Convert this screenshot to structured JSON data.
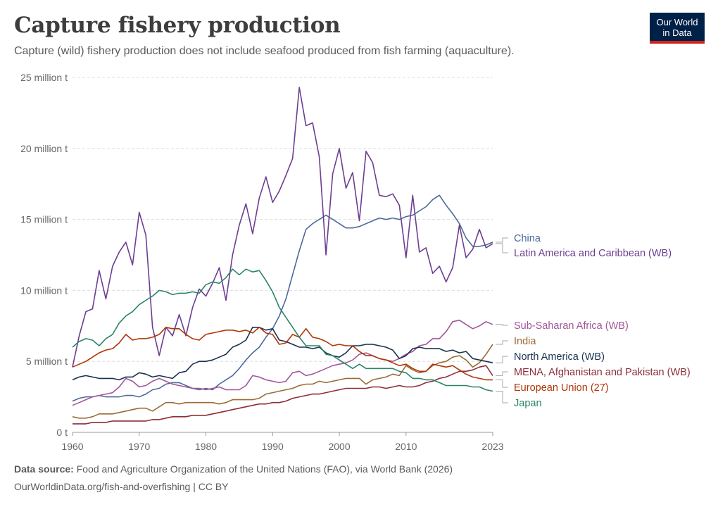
{
  "header": {
    "title": "Capture fishery production",
    "subtitle": "Capture (wild) fishery production does not include seafood produced from fish farming (aquaculture).",
    "logo_line1": "Our World",
    "logo_line2": "in Data"
  },
  "footer": {
    "source_label": "Data source:",
    "source_text": "Food and Agriculture Organization of the United Nations (FAO), via World Bank (2026)",
    "url": "OurWorldinData.org/fish-and-overfishing | CC BY"
  },
  "chart_data": {
    "type": "line",
    "title": "Capture fishery production",
    "xlabel": "",
    "ylabel": "",
    "xlim": [
      1960,
      2023
    ],
    "ylim": [
      0,
      25000000
    ],
    "grid": "horizontal dashed",
    "legend_placement": "right, inline labels at line ends",
    "x_ticks": [
      {
        "value": 1960,
        "label": "1960"
      },
      {
        "value": 1970,
        "label": "1970"
      },
      {
        "value": 1980,
        "label": "1980"
      },
      {
        "value": 1990,
        "label": "1990"
      },
      {
        "value": 2000,
        "label": "2000"
      },
      {
        "value": 2010,
        "label": "2010"
      },
      {
        "value": 2023,
        "label": "2023"
      }
    ],
    "y_ticks": [
      {
        "value": 0,
        "label": "0 t"
      },
      {
        "value": 5000000,
        "label": "5 million t"
      },
      {
        "value": 10000000,
        "label": "10 million t"
      },
      {
        "value": 15000000,
        "label": "15 million t"
      },
      {
        "value": 20000000,
        "label": "20 million t"
      },
      {
        "value": 25000000,
        "label": "25 million t"
      }
    ],
    "x": [
      1960,
      1961,
      1962,
      1963,
      1964,
      1965,
      1966,
      1967,
      1968,
      1969,
      1970,
      1971,
      1972,
      1973,
      1974,
      1975,
      1976,
      1977,
      1978,
      1979,
      1980,
      1981,
      1982,
      1983,
      1984,
      1985,
      1986,
      1987,
      1988,
      1989,
      1990,
      1991,
      1992,
      1993,
      1994,
      1995,
      1996,
      1997,
      1998,
      1999,
      2000,
      2001,
      2002,
      2003,
      2004,
      2005,
      2006,
      2007,
      2008,
      2009,
      2010,
      2011,
      2012,
      2013,
      2014,
      2015,
      2016,
      2017,
      2018,
      2019,
      2020,
      2021,
      2022,
      2023
    ],
    "series": [
      {
        "name": "China",
        "color": "#4c6a9c",
        "values": [
          2200000,
          2400000,
          2500000,
          2500000,
          2600000,
          2500000,
          2500000,
          2500000,
          2600000,
          2600000,
          2500000,
          2700000,
          3000000,
          3100000,
          3400000,
          3500000,
          3500000,
          3300000,
          3100000,
          3000000,
          3100000,
          3000000,
          3400000,
          3700000,
          4000000,
          4500000,
          5100000,
          5600000,
          6000000,
          6700000,
          7300000,
          8200000,
          9400000,
          11100000,
          12800000,
          14300000,
          14700000,
          15000000,
          15300000,
          15000000,
          14700000,
          14400000,
          14400000,
          14500000,
          14700000,
          14900000,
          15100000,
          15000000,
          15100000,
          15000000,
          15200000,
          15300000,
          15600000,
          15900000,
          16400000,
          16700000,
          16000000,
          15400000,
          14700000,
          13700000,
          13100000,
          13100000,
          13200000,
          13400000
        ]
      },
      {
        "name": "Latin America and Caribbean (WB)",
        "color": "#6d3e91",
        "values": [
          4600000,
          6800000,
          8500000,
          8700000,
          11400000,
          9400000,
          11700000,
          12700000,
          13400000,
          11800000,
          15500000,
          13900000,
          7400000,
          5400000,
          7400000,
          6800000,
          8300000,
          6800000,
          8800000,
          10100000,
          9600000,
          10500000,
          11600000,
          9300000,
          12500000,
          14600000,
          16100000,
          14000000,
          16500000,
          18000000,
          16200000,
          17000000,
          18100000,
          19300000,
          24300000,
          21600000,
          21800000,
          19400000,
          12500000,
          18200000,
          20000000,
          17200000,
          18300000,
          14900000,
          19800000,
          19000000,
          16700000,
          16600000,
          16800000,
          16000000,
          12300000,
          16700000,
          12700000,
          13000000,
          11200000,
          11700000,
          10600000,
          11600000,
          14600000,
          12300000,
          12900000,
          14300000,
          13000000,
          13300000
        ]
      },
      {
        "name": "Sub-Saharan Africa (WB)",
        "color": "#a2559c",
        "values": [
          1900000,
          2100000,
          2300000,
          2500000,
          2600000,
          2700000,
          2800000,
          3200000,
          3800000,
          3600000,
          3200000,
          3300000,
          3600000,
          3800000,
          3600000,
          3400000,
          3300000,
          3200000,
          3100000,
          3100000,
          3000000,
          3100000,
          3200000,
          3000000,
          3000000,
          3000000,
          3300000,
          4000000,
          3900000,
          3700000,
          3600000,
          3500000,
          3600000,
          4200000,
          4300000,
          4000000,
          4100000,
          4300000,
          4500000,
          4700000,
          4800000,
          4900000,
          5100000,
          5500000,
          5600000,
          5400000,
          5200000,
          5100000,
          5000000,
          5200000,
          5500000,
          5700000,
          6100000,
          6200000,
          6600000,
          6600000,
          7100000,
          7800000,
          7900000,
          7600000,
          7300000,
          7500000,
          7800000,
          7600000
        ]
      },
      {
        "name": "India",
        "color": "#9a6b36",
        "values": [
          1100000,
          1000000,
          1000000,
          1100000,
          1300000,
          1300000,
          1300000,
          1400000,
          1500000,
          1600000,
          1700000,
          1700000,
          1500000,
          1800000,
          2100000,
          2100000,
          2000000,
          2100000,
          2100000,
          2100000,
          2100000,
          2100000,
          2000000,
          2100000,
          2300000,
          2300000,
          2300000,
          2300000,
          2400000,
          2700000,
          2800000,
          2900000,
          3000000,
          3100000,
          3300000,
          3400000,
          3400000,
          3600000,
          3500000,
          3600000,
          3700000,
          3800000,
          3800000,
          3800000,
          3400000,
          3700000,
          3800000,
          3900000,
          4100000,
          4000000,
          4700000,
          4400000,
          4200000,
          4300000,
          4700000,
          4900000,
          5000000,
          5300000,
          5400000,
          5100000,
          4600000,
          4900000,
          5500000,
          6200000
        ]
      },
      {
        "name": "North America (WB)",
        "color": "#18324f",
        "values": [
          3700000,
          3900000,
          4000000,
          3900000,
          3800000,
          3800000,
          3800000,
          3700000,
          3900000,
          3900000,
          4200000,
          4100000,
          3900000,
          4000000,
          3900000,
          3800000,
          4200000,
          4300000,
          4800000,
          5000000,
          5000000,
          5100000,
          5300000,
          5500000,
          6000000,
          6200000,
          6500000,
          7400000,
          7400000,
          7200000,
          7300000,
          6500000,
          6400000,
          6200000,
          6000000,
          6000000,
          5900000,
          6000000,
          5600000,
          5400000,
          5300000,
          5600000,
          6100000,
          6100000,
          6200000,
          6200000,
          6100000,
          6000000,
          5800000,
          5200000,
          5400000,
          5900000,
          6000000,
          5900000,
          5900000,
          5900000,
          5700000,
          5800000,
          5600000,
          5700000,
          5200000,
          5100000,
          5000000,
          4900000
        ]
      },
      {
        "name": "MENA, Afghanistan and Pakistan (WB)",
        "color": "#8c2d3a",
        "values": [
          600000,
          600000,
          600000,
          700000,
          700000,
          700000,
          800000,
          800000,
          800000,
          800000,
          800000,
          800000,
          900000,
          900000,
          1000000,
          1100000,
          1100000,
          1100000,
          1200000,
          1200000,
          1200000,
          1300000,
          1400000,
          1500000,
          1600000,
          1700000,
          1800000,
          1900000,
          2000000,
          2000000,
          2100000,
          2100000,
          2200000,
          2400000,
          2500000,
          2600000,
          2700000,
          2700000,
          2800000,
          2900000,
          3000000,
          3100000,
          3100000,
          3100000,
          3100000,
          3200000,
          3200000,
          3100000,
          3200000,
          3300000,
          3200000,
          3200000,
          3300000,
          3500000,
          3600000,
          3800000,
          3900000,
          4100000,
          4300000,
          4300000,
          4400000,
          4600000,
          4700000,
          4000000
        ]
      },
      {
        "name": "European Union (27)",
        "color": "#b13507",
        "values": [
          4600000,
          4800000,
          5000000,
          5300000,
          5600000,
          5800000,
          5900000,
          6300000,
          6900000,
          6500000,
          6600000,
          6600000,
          6700000,
          6900000,
          7400000,
          7300000,
          7300000,
          6900000,
          6600000,
          6500000,
          6900000,
          7000000,
          7100000,
          7200000,
          7200000,
          7100000,
          7200000,
          7000000,
          7400000,
          7000000,
          6900000,
          6200000,
          6300000,
          6900000,
          6700000,
          7300000,
          6700000,
          6600000,
          6400000,
          6100000,
          6200000,
          6100000,
          6100000,
          5700000,
          5400000,
          5400000,
          5200000,
          5100000,
          4900000,
          4700000,
          4800000,
          4500000,
          4300000,
          4300000,
          4800000,
          4700000,
          4600000,
          4700000,
          4400000,
          4100000,
          3900000,
          3800000,
          3700000,
          3700000
        ]
      },
      {
        "name": "Japan",
        "color": "#2b8465",
        "values": [
          6000000,
          6400000,
          6600000,
          6500000,
          6100000,
          6600000,
          6900000,
          7700000,
          8200000,
          8500000,
          9000000,
          9300000,
          9600000,
          10000000,
          9900000,
          9700000,
          9800000,
          9800000,
          9900000,
          9800000,
          10400000,
          10600000,
          10500000,
          10900000,
          11500000,
          11100000,
          11500000,
          11300000,
          11400000,
          10700000,
          9900000,
          8800000,
          8100000,
          7400000,
          6700000,
          6100000,
          6100000,
          6100000,
          5500000,
          5400000,
          5100000,
          4800000,
          4500000,
          4800000,
          4500000,
          4500000,
          4500000,
          4500000,
          4500000,
          4300000,
          4200000,
          3800000,
          3800000,
          3700000,
          3700000,
          3500000,
          3300000,
          3300000,
          3300000,
          3300000,
          3200000,
          3200000,
          3000000,
          2900000
        ]
      }
    ]
  }
}
